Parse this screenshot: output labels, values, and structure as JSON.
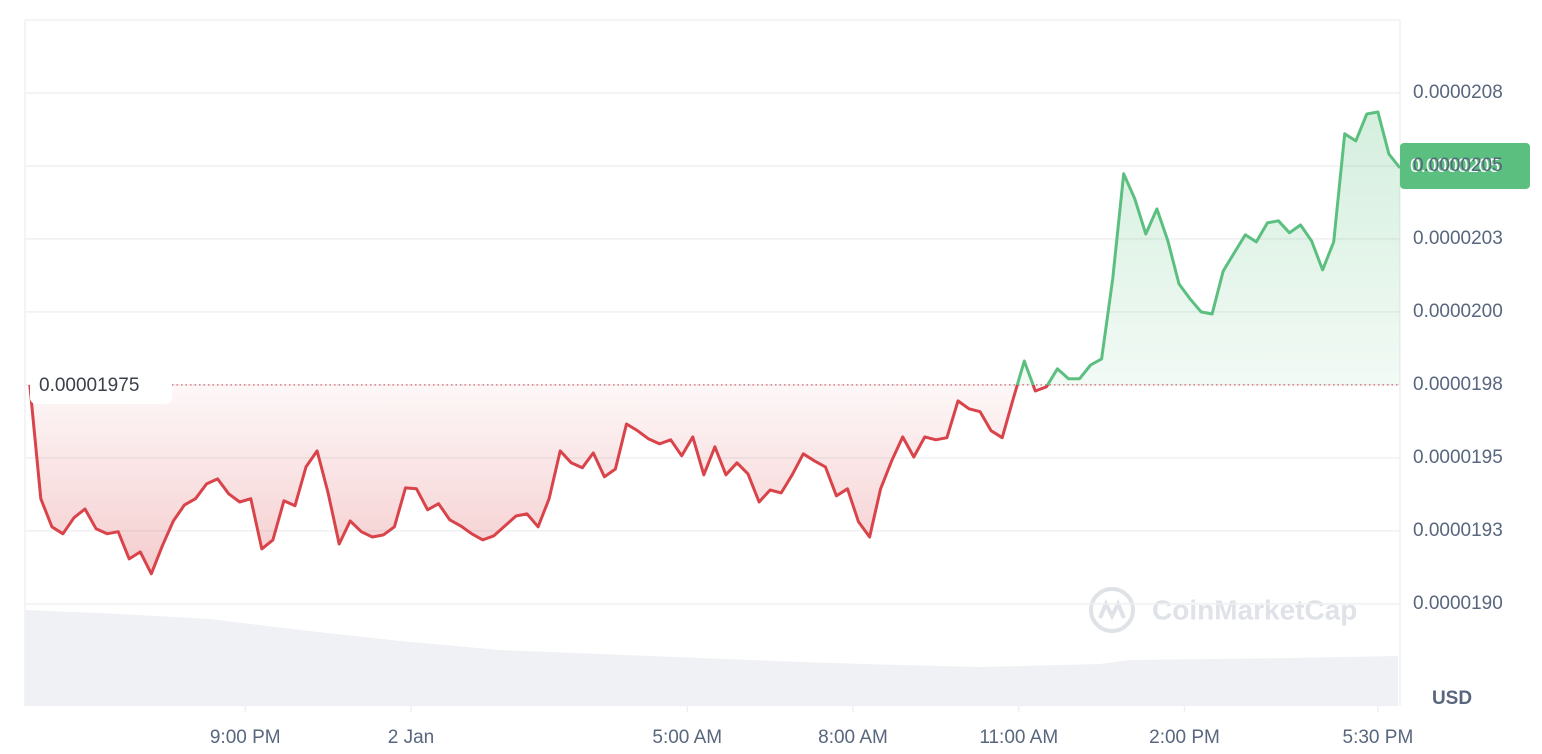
{
  "chart_data": {
    "type": "baseline-line",
    "x": [
      -6.9,
      -6.7,
      -6.5,
      -6.3,
      -6.1,
      -5.9,
      -5.7,
      -5.5,
      -5.3,
      -5.1,
      -4.9,
      -4.7,
      -4.5,
      -4.3,
      -4.1,
      -3.9,
      -3.7,
      -3.5,
      -3.3,
      -3.1,
      -2.9,
      -2.7,
      -2.5,
      -2.3,
      -2.1,
      -1.9,
      -1.7,
      -1.5,
      -1.3,
      -1.1,
      -0.9,
      -0.7,
      -0.5,
      -0.3,
      -0.1,
      0.1,
      0.3,
      0.5,
      0.7,
      0.9,
      1.1,
      1.3,
      1.5,
      1.7,
      1.9,
      2.1,
      2.3,
      2.5,
      2.7,
      2.9,
      3.1,
      3.3,
      3.5,
      3.7,
      3.9,
      4.1,
      4.3,
      4.5,
      4.7,
      4.9,
      5.1,
      5.3,
      5.5,
      5.7,
      5.9,
      6.1,
      6.3,
      6.5,
      6.7,
      6.9,
      7.1,
      7.3,
      7.5,
      7.7,
      7.9,
      8.1,
      8.3,
      8.5,
      8.7,
      8.9,
      9.1,
      9.3,
      9.5,
      9.7,
      9.9,
      10.1,
      10.3,
      10.5,
      10.7,
      10.9,
      11.1,
      11.3,
      11.5,
      11.7,
      11.9,
      12.1,
      12.3,
      12.5,
      12.7,
      12.9,
      13.1,
      13.3,
      13.5,
      13.7,
      13.9,
      14.1,
      14.3,
      14.5,
      14.7,
      14.9,
      15.1,
      15.3,
      15.5,
      15.7,
      15.9,
      16.1,
      16.3,
      16.5,
      16.7,
      16.9,
      17.1,
      17.3,
      17.5,
      17.7,
      17.9
    ],
    "values": [
      1.975e-05,
      1.936e-05,
      1.9264e-05,
      1.924e-05,
      1.9295e-05,
      1.9325e-05,
      1.9257e-05,
      1.924e-05,
      1.9247e-05,
      1.9154e-05,
      1.9178e-05,
      1.9103e-05,
      1.9199e-05,
      1.9284e-05,
      1.9339e-05,
      1.936e-05,
      1.9411e-05,
      1.9428e-05,
      1.9377e-05,
      1.9349e-05,
      1.936e-05,
      1.9188e-05,
      1.9219e-05,
      1.9353e-05,
      1.9336e-05,
      1.9469e-05,
      1.9524e-05,
      1.938e-05,
      1.9205e-05,
      1.9284e-05,
      1.9247e-05,
      1.9229e-05,
      1.9236e-05,
      1.9264e-05,
      1.9397e-05,
      1.9394e-05,
      1.9322e-05,
      1.9343e-05,
      1.9288e-05,
      1.9267e-05,
      1.924e-05,
      1.9219e-05,
      1.9233e-05,
      1.9267e-05,
      1.9301e-05,
      1.9308e-05,
      1.9264e-05,
      1.936e-05,
      1.9524e-05,
      1.9483e-05,
      1.9466e-05,
      1.9517e-05,
      1.9435e-05,
      1.9462e-05,
      1.9616e-05,
      1.9593e-05,
      1.9565e-05,
      1.9548e-05,
      1.9562e-05,
      1.9507e-05,
      1.9572e-05,
      1.9442e-05,
      1.9538e-05,
      1.9442e-05,
      1.9483e-05,
      1.9445e-05,
      1.9349e-05,
      1.939e-05,
      1.938e-05,
      1.9442e-05,
      1.9514e-05,
      1.949e-05,
      1.9469e-05,
      1.937e-05,
      1.9394e-05,
      1.9281e-05,
      1.9229e-05,
      1.9394e-05,
      1.949e-05,
      1.9572e-05,
      1.9503e-05,
      1.9572e-05,
      1.9562e-05,
      1.9569e-05,
      1.9695e-05,
      1.9668e-05,
      1.9658e-05,
      1.9593e-05,
      1.9569e-05,
      1.9702e-05,
      1.9832e-05,
      1.9729e-05,
      1.9743e-05,
      1.9805e-05,
      1.9771e-05,
      1.9771e-05,
      1.9818e-05,
      1.9839e-05,
      2.0113e-05,
      2.0473e-05,
      2.0387e-05,
      2.0267e-05,
      2.0353e-05,
      2.0243e-05,
      2.0096e-05,
      2.0045e-05,
      2e-05,
      1.9993e-05,
      2.014e-05,
      2.0202e-05,
      2.0264e-05,
      2.024e-05,
      2.0305e-05,
      2.0312e-05,
      2.0271e-05,
      2.0298e-05,
      2.0243e-05,
      2.0144e-05,
      2.024e-05,
      2.061e-05,
      2.0586e-05,
      2.0678e-05,
      2.0685e-05,
      2.0541e-05,
      2.0493e-05
    ],
    "baseline": 1.975e-05,
    "last_price": 2.05e-05,
    "up_color": "#5bc07f",
    "down_color": "#d9434a",
    "xlim": [
      -6.95,
      17.9
    ],
    "xticks": [
      {
        "value": -3,
        "label": "9:00 PM"
      },
      {
        "value": 0,
        "label": "2 Jan"
      },
      {
        "value": 5,
        "label": "5:00 AM"
      },
      {
        "value": 8,
        "label": "8:00 AM"
      },
      {
        "value": 11,
        "label": "11:00 AM"
      },
      {
        "value": 14,
        "label": "2:00 PM"
      },
      {
        "value": 17.5,
        "label": "5:30 PM"
      }
    ],
    "ylim": [
      1.865e-05,
      2.1e-05
    ],
    "yticks": [
      {
        "value": 2.075e-05,
        "label": "0.0000208"
      },
      2.05e-05,
      {
        "value": 2.025e-05,
        "label": "0.0000203"
      },
      {
        "value": 2e-05,
        "label": "0.0000200"
      },
      {
        "value": 1.975e-05,
        "label": "0.0000198"
      },
      1.95e-05,
      {
        "value": 1.925e-05,
        "label": "0.0000193"
      },
      {
        "value": 1.9e-05,
        "label": "0.0000190"
      }
    ],
    "grid": true,
    "y_unit": "USD",
    "watermark": "CoinMarketCap"
  }
}
